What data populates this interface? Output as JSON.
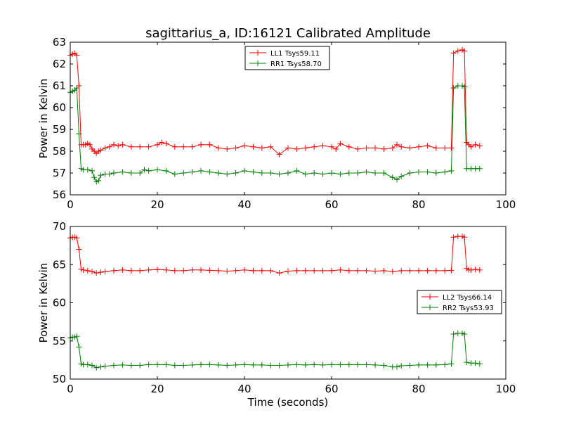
{
  "figure": {
    "title": "sagittarius_a, ID:16121 Calibrated Amplitude"
  },
  "chart_data": [
    {
      "type": "line",
      "ylabel": "Power in Kelvin",
      "xlabel": "",
      "xlim": [
        0,
        100
      ],
      "ylim": [
        56,
        63
      ],
      "xticks": [
        0,
        20,
        40,
        60,
        80,
        100
      ],
      "yticks": [
        56,
        57,
        58,
        59,
        60,
        61,
        62,
        63
      ],
      "grid": false,
      "legend_position": "top-center",
      "series": [
        {
          "name": "LL1 Tsys59.11",
          "color": "#ff0000",
          "marker": "plus",
          "points": [
            [
              0,
              62.4
            ],
            [
              0.5,
              62.45
            ],
            [
              1,
              62.5
            ],
            [
              1.5,
              62.4
            ],
            [
              2,
              61.0
            ],
            [
              2.5,
              58.3
            ],
            [
              3,
              58.3
            ],
            [
              3.5,
              58.3
            ],
            [
              4,
              58.35
            ],
            [
              4.5,
              58.3
            ],
            [
              5,
              58.1
            ],
            [
              5.5,
              58.0
            ],
            [
              6,
              57.9
            ],
            [
              6.5,
              58.0
            ],
            [
              7,
              58.05
            ],
            [
              8,
              58.15
            ],
            [
              9,
              58.2
            ],
            [
              10,
              58.3
            ],
            [
              11,
              58.25
            ],
            [
              12,
              58.3
            ],
            [
              14,
              58.2
            ],
            [
              16,
              58.2
            ],
            [
              18,
              58.2
            ],
            [
              20,
              58.3
            ],
            [
              21,
              58.4
            ],
            [
              22,
              58.35
            ],
            [
              24,
              58.2
            ],
            [
              26,
              58.2
            ],
            [
              28,
              58.2
            ],
            [
              30,
              58.3
            ],
            [
              32,
              58.3
            ],
            [
              34,
              58.15
            ],
            [
              36,
              58.1
            ],
            [
              38,
              58.15
            ],
            [
              40,
              58.25
            ],
            [
              42,
              58.2
            ],
            [
              44,
              58.15
            ],
            [
              46,
              58.2
            ],
            [
              48,
              57.85
            ],
            [
              50,
              58.15
            ],
            [
              52,
              58.1
            ],
            [
              54,
              58.15
            ],
            [
              56,
              58.2
            ],
            [
              58,
              58.25
            ],
            [
              60,
              58.2
            ],
            [
              61,
              58.1
            ],
            [
              62,
              58.35
            ],
            [
              64,
              58.2
            ],
            [
              66,
              58.1
            ],
            [
              68,
              58.15
            ],
            [
              70,
              58.15
            ],
            [
              72,
              58.1
            ],
            [
              74,
              58.15
            ],
            [
              75,
              58.3
            ],
            [
              76,
              58.2
            ],
            [
              78,
              58.15
            ],
            [
              80,
              58.2
            ],
            [
              82,
              58.25
            ],
            [
              84,
              58.15
            ],
            [
              86,
              58.15
            ],
            [
              87.5,
              58.15
            ],
            [
              88,
              62.5
            ],
            [
              89,
              62.6
            ],
            [
              90,
              62.65
            ],
            [
              90.5,
              62.6
            ],
            [
              91,
              58.4
            ],
            [
              91.5,
              58.3
            ],
            [
              92,
              58.2
            ],
            [
              93,
              58.3
            ],
            [
              94,
              58.25
            ]
          ]
        },
        {
          "name": "RR1 Tsys58.70",
          "color": "#008000",
          "marker": "plus",
          "points": [
            [
              0,
              60.7
            ],
            [
              0.5,
              60.75
            ],
            [
              1,
              60.8
            ],
            [
              1.5,
              60.9
            ],
            [
              2,
              58.8
            ],
            [
              2.5,
              57.2
            ],
            [
              3,
              57.15
            ],
            [
              4,
              57.15
            ],
            [
              5,
              57.1
            ],
            [
              5.5,
              56.8
            ],
            [
              6,
              56.6
            ],
            [
              6.5,
              56.65
            ],
            [
              7,
              56.9
            ],
            [
              8,
              56.95
            ],
            [
              9,
              56.95
            ],
            [
              10,
              57.0
            ],
            [
              12,
              57.05
            ],
            [
              14,
              57.0
            ],
            [
              16,
              57.0
            ],
            [
              17,
              57.15
            ],
            [
              18,
              57.1
            ],
            [
              20,
              57.15
            ],
            [
              22,
              57.1
            ],
            [
              24,
              56.95
            ],
            [
              26,
              57.0
            ],
            [
              28,
              57.05
            ],
            [
              30,
              57.1
            ],
            [
              32,
              57.05
            ],
            [
              34,
              57.0
            ],
            [
              36,
              56.95
            ],
            [
              38,
              57.0
            ],
            [
              40,
              57.1
            ],
            [
              42,
              57.05
            ],
            [
              44,
              57.0
            ],
            [
              46,
              57.0
            ],
            [
              48,
              56.95
            ],
            [
              50,
              57.0
            ],
            [
              52,
              57.1
            ],
            [
              54,
              56.95
            ],
            [
              56,
              57.0
            ],
            [
              58,
              56.95
            ],
            [
              60,
              57.0
            ],
            [
              62,
              56.95
            ],
            [
              64,
              57.0
            ],
            [
              66,
              57.0
            ],
            [
              68,
              57.05
            ],
            [
              70,
              57.0
            ],
            [
              72,
              57.0
            ],
            [
              74,
              56.8
            ],
            [
              75,
              56.7
            ],
            [
              76,
              56.85
            ],
            [
              78,
              57.0
            ],
            [
              80,
              57.05
            ],
            [
              82,
              57.05
            ],
            [
              84,
              57.0
            ],
            [
              86,
              57.05
            ],
            [
              87.5,
              57.1
            ],
            [
              88,
              60.9
            ],
            [
              89,
              61.0
            ],
            [
              90,
              61.0
            ],
            [
              90.5,
              60.95
            ],
            [
              91,
              57.2
            ],
            [
              92,
              57.2
            ],
            [
              93,
              57.2
            ],
            [
              94,
              57.2
            ]
          ]
        }
      ]
    },
    {
      "type": "line",
      "ylabel": "Power in Kelvin",
      "xlabel": "Time (seconds)",
      "xlim": [
        0,
        100
      ],
      "ylim": [
        50,
        70
      ],
      "xticks": [
        0,
        20,
        40,
        60,
        80,
        100
      ],
      "yticks": [
        50,
        55,
        60,
        65,
        70
      ],
      "grid": false,
      "legend_position": "center-right",
      "series": [
        {
          "name": "LL2 Tsys66.14",
          "color": "#ff0000",
          "marker": "plus",
          "points": [
            [
              0,
              68.5
            ],
            [
              0.5,
              68.6
            ],
            [
              1,
              68.6
            ],
            [
              1.5,
              68.5
            ],
            [
              2,
              67.0
            ],
            [
              2.5,
              64.4
            ],
            [
              3,
              64.3
            ],
            [
              4,
              64.2
            ],
            [
              5,
              64.1
            ],
            [
              6,
              63.9
            ],
            [
              7,
              64.0
            ],
            [
              8,
              64.1
            ],
            [
              10,
              64.2
            ],
            [
              12,
              64.3
            ],
            [
              14,
              64.2
            ],
            [
              16,
              64.2
            ],
            [
              18,
              64.3
            ],
            [
              20,
              64.35
            ],
            [
              22,
              64.3
            ],
            [
              24,
              64.2
            ],
            [
              26,
              64.2
            ],
            [
              28,
              64.3
            ],
            [
              30,
              64.3
            ],
            [
              32,
              64.25
            ],
            [
              34,
              64.2
            ],
            [
              36,
              64.15
            ],
            [
              38,
              64.2
            ],
            [
              40,
              64.3
            ],
            [
              42,
              64.2
            ],
            [
              44,
              64.2
            ],
            [
              46,
              64.2
            ],
            [
              48,
              63.9
            ],
            [
              50,
              64.15
            ],
            [
              52,
              64.2
            ],
            [
              54,
              64.2
            ],
            [
              56,
              64.2
            ],
            [
              58,
              64.2
            ],
            [
              60,
              64.2
            ],
            [
              62,
              64.3
            ],
            [
              64,
              64.2
            ],
            [
              66,
              64.2
            ],
            [
              68,
              64.2
            ],
            [
              70,
              64.15
            ],
            [
              72,
              64.2
            ],
            [
              74,
              64.1
            ],
            [
              76,
              64.2
            ],
            [
              78,
              64.2
            ],
            [
              80,
              64.2
            ],
            [
              82,
              64.2
            ],
            [
              84,
              64.2
            ],
            [
              86,
              64.2
            ],
            [
              87.5,
              64.25
            ],
            [
              88,
              68.6
            ],
            [
              89,
              68.7
            ],
            [
              90,
              68.7
            ],
            [
              90.5,
              68.6
            ],
            [
              91,
              64.5
            ],
            [
              91.5,
              64.3
            ],
            [
              92,
              64.3
            ],
            [
              93,
              64.35
            ],
            [
              94,
              64.3
            ]
          ]
        },
        {
          "name": "RR2 Tsys53.93",
          "color": "#008000",
          "marker": "plus",
          "points": [
            [
              0,
              55.4
            ],
            [
              0.5,
              55.5
            ],
            [
              1,
              55.5
            ],
            [
              1.5,
              55.6
            ],
            [
              2,
              54.2
            ],
            [
              2.5,
              52.0
            ],
            [
              3,
              51.9
            ],
            [
              4,
              51.9
            ],
            [
              5,
              51.8
            ],
            [
              6,
              51.5
            ],
            [
              7,
              51.6
            ],
            [
              8,
              51.7
            ],
            [
              10,
              51.8
            ],
            [
              12,
              51.85
            ],
            [
              14,
              51.8
            ],
            [
              16,
              51.8
            ],
            [
              18,
              51.9
            ],
            [
              20,
              51.9
            ],
            [
              22,
              51.9
            ],
            [
              24,
              51.8
            ],
            [
              26,
              51.8
            ],
            [
              28,
              51.85
            ],
            [
              30,
              51.9
            ],
            [
              32,
              51.9
            ],
            [
              34,
              51.85
            ],
            [
              36,
              51.8
            ],
            [
              38,
              51.85
            ],
            [
              40,
              51.9
            ],
            [
              42,
              51.85
            ],
            [
              44,
              51.85
            ],
            [
              46,
              51.8
            ],
            [
              48,
              51.8
            ],
            [
              50,
              51.85
            ],
            [
              52,
              51.9
            ],
            [
              54,
              51.85
            ],
            [
              56,
              51.9
            ],
            [
              58,
              51.85
            ],
            [
              60,
              51.9
            ],
            [
              62,
              51.9
            ],
            [
              64,
              51.9
            ],
            [
              66,
              51.9
            ],
            [
              68,
              51.9
            ],
            [
              70,
              51.85
            ],
            [
              72,
              51.8
            ],
            [
              74,
              51.6
            ],
            [
              75,
              51.6
            ],
            [
              76,
              51.75
            ],
            [
              78,
              51.8
            ],
            [
              80,
              51.85
            ],
            [
              82,
              51.85
            ],
            [
              84,
              51.85
            ],
            [
              86,
              51.9
            ],
            [
              87.5,
              52.0
            ],
            [
              88,
              55.9
            ],
            [
              89,
              56.0
            ],
            [
              90,
              56.0
            ],
            [
              90.5,
              55.9
            ],
            [
              91,
              52.2
            ],
            [
              92,
              52.1
            ],
            [
              93,
              52.1
            ],
            [
              94,
              52.0
            ]
          ]
        }
      ]
    }
  ]
}
